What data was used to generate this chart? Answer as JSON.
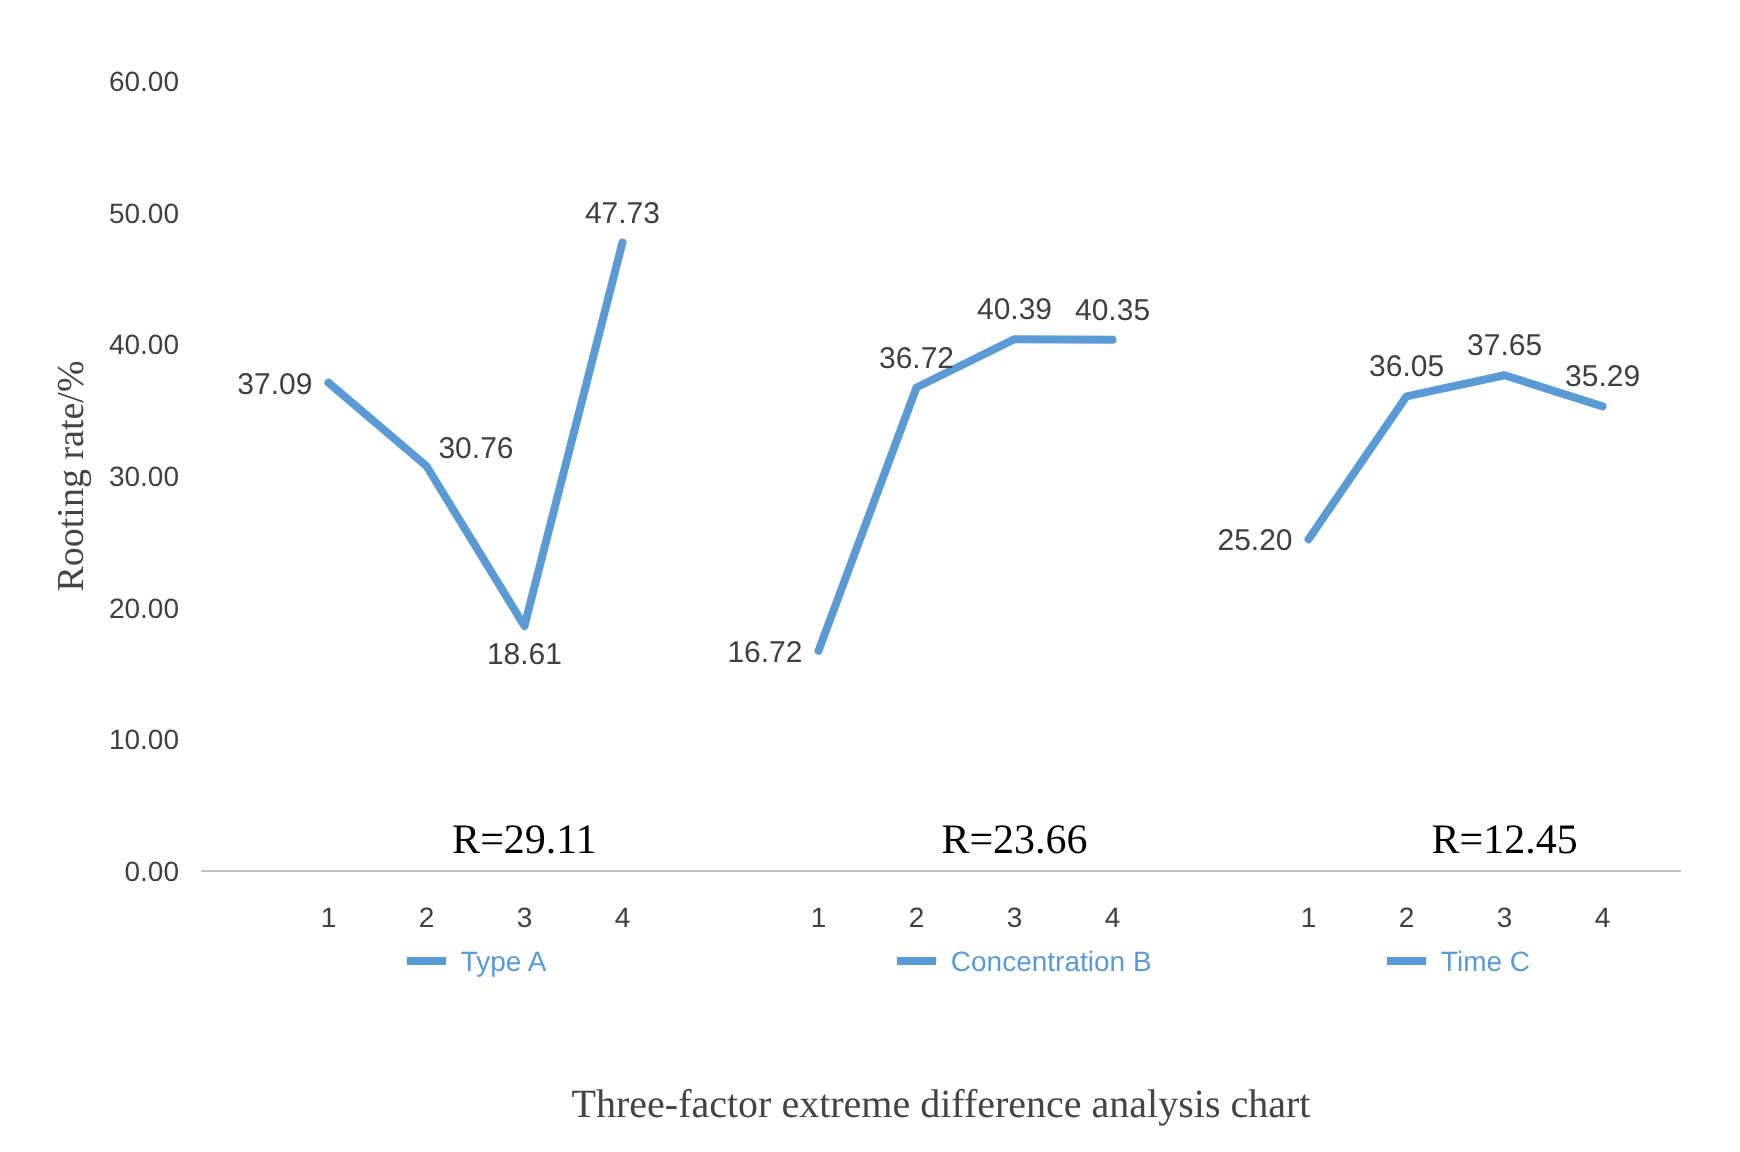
{
  "chart_data": {
    "type": "line",
    "xlabel": "Three-factor extreme difference analysis chart",
    "ylabel": "Rooting rate/%",
    "categories": [
      "1",
      "2",
      "3",
      "4",
      "1",
      "2",
      "3",
      "4",
      "1",
      "2",
      "3",
      "4"
    ],
    "series": [
      {
        "name": "Type A",
        "color": "#5b9bd5",
        "values": [
          37.09,
          30.76,
          18.61,
          47.73,
          null,
          null,
          null,
          null,
          null,
          null,
          null,
          null
        ],
        "value_labels": [
          "37.09",
          "30.76",
          "18.61",
          "47.73",
          null,
          null,
          null,
          null,
          null,
          null,
          null,
          null
        ]
      },
      {
        "name": "Concentration B",
        "color": "#5b9bd5",
        "values": [
          null,
          null,
          null,
          null,
          16.72,
          36.72,
          40.39,
          40.35,
          null,
          null,
          null,
          null
        ],
        "value_labels": [
          null,
          null,
          null,
          null,
          "16.72",
          "36.72",
          "40.39",
          "40.35",
          null,
          null,
          null,
          null
        ]
      },
      {
        "name": "Time C",
        "color": "#5b9bd5",
        "values": [
          null,
          null,
          null,
          null,
          null,
          null,
          null,
          null,
          25.2,
          36.05,
          37.65,
          35.29
        ],
        "value_labels": [
          null,
          null,
          null,
          null,
          null,
          null,
          null,
          null,
          "25.20",
          "36.05",
          "37.65",
          "35.29"
        ]
      }
    ],
    "annotations": [
      "R=29.11",
      "R=23.66",
      "R=12.45"
    ],
    "ylim": [
      0,
      60
    ],
    "yticks": [
      {
        "value": 0,
        "label": "0.00"
      },
      {
        "value": 10,
        "label": "10.00"
      },
      {
        "value": 20,
        "label": "20.00"
      },
      {
        "value": 30,
        "label": "30.00"
      },
      {
        "value": 40,
        "label": "40.00"
      },
      {
        "value": 50,
        "label": "50.00"
      },
      {
        "value": 60,
        "label": "60.00"
      }
    ],
    "grid": false,
    "legend": "bottom",
    "marker": "none",
    "line_style": "solid"
  }
}
